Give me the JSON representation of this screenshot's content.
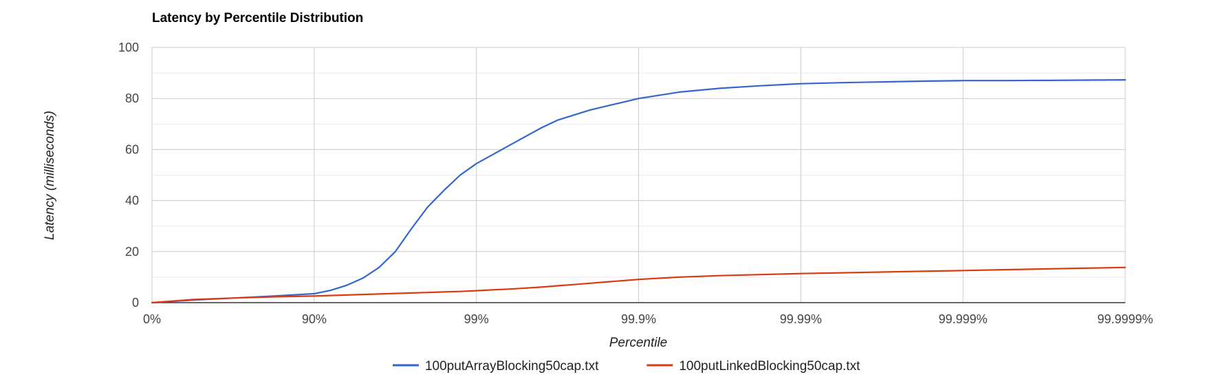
{
  "chart_data": {
    "type": "line",
    "title": "Latency by Percentile Distribution",
    "xlabel": "Percentile",
    "ylabel": "Latency (milliseconds)",
    "x_scale": "log-percentile (nines)",
    "x_ticks": [
      "0%",
      "90%",
      "99%",
      "99.9%",
      "99.99%",
      "99.999%",
      "99.9999%"
    ],
    "ylim": [
      0,
      100
    ],
    "y_ticks": [
      0,
      20,
      40,
      60,
      80,
      100
    ],
    "grid": true,
    "legend_position": "bottom",
    "x_nines": [
      0,
      0.25,
      0.5,
      0.75,
      1.0,
      1.1,
      1.2,
      1.3,
      1.4,
      1.5,
      1.6,
      1.7,
      1.8,
      1.9,
      2.0,
      2.1,
      2.2,
      2.3,
      2.4,
      2.5,
      2.6,
      2.7,
      2.8,
      2.9,
      3.0,
      3.25,
      3.5,
      3.75,
      4.0,
      4.25,
      4.5,
      4.75,
      5.0,
      5.25,
      5.5,
      5.75,
      6.0
    ],
    "series": [
      {
        "name": "100putArrayBlocking50cap.txt",
        "color": "#3366cc",
        "values": [
          0,
          1.0,
          1.8,
          2.6,
          3.5,
          4.8,
          6.8,
          9.6,
          13.8,
          20.0,
          29.0,
          37.5,
          44.0,
          50.0,
          54.5,
          58.0,
          61.5,
          65.0,
          68.5,
          71.5,
          73.5,
          75.5,
          77.0,
          78.5,
          80.0,
          82.5,
          84.0,
          85.0,
          85.8,
          86.2,
          86.5,
          86.8,
          87.0,
          87.0,
          87.1,
          87.2,
          87.3
        ]
      },
      {
        "name": "100putLinkedBlocking50cap.txt",
        "color": "#dc3912",
        "values": [
          0,
          1.2,
          1.8,
          2.3,
          2.6,
          2.8,
          3.0,
          3.2,
          3.4,
          3.6,
          3.8,
          4.0,
          4.2,
          4.4,
          4.7,
          5.0,
          5.3,
          5.7,
          6.1,
          6.6,
          7.1,
          7.6,
          8.1,
          8.6,
          9.1,
          10.0,
          10.6,
          11.0,
          11.4,
          11.7,
          12.0,
          12.3,
          12.6,
          12.9,
          13.2,
          13.5,
          13.8
        ]
      }
    ]
  }
}
